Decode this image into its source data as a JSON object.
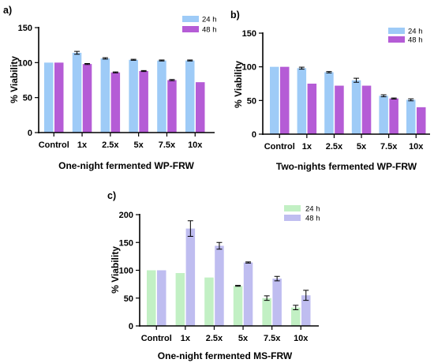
{
  "chart_data": [
    {
      "panel_label": "a)",
      "type": "bar",
      "categories": [
        "Control",
        "1x",
        "2.5x",
        "5x",
        "7.5x",
        "10x"
      ],
      "xlabel": "One-night fermented WP-FRW",
      "ylabel": "% Viability",
      "ylim": [
        0,
        150
      ],
      "yticks": [
        0,
        50,
        100,
        150
      ],
      "legend_position": "top-right",
      "series": [
        {
          "name": "24 h",
          "color": "#9ECBF7",
          "values": [
            100,
            114,
            106,
            104,
            103,
            103
          ],
          "errors": [
            0,
            2,
            1,
            0.7,
            0.7,
            0.7
          ]
        },
        {
          "name": "48 h",
          "color": "#B55CD6",
          "values": [
            100,
            98,
            86,
            88,
            75,
            72
          ],
          "errors": [
            0,
            0.7,
            0.7,
            0.7,
            0.8,
            0
          ]
        }
      ]
    },
    {
      "panel_label": "b)",
      "type": "bar",
      "categories": [
        "Control",
        "1x",
        "2.5x",
        "5x",
        "7.5x",
        "10x"
      ],
      "xlabel": "Two-nights fermented WP-FRW",
      "ylabel": "% Viability",
      "ylim": [
        0,
        150
      ],
      "yticks": [
        0,
        50,
        100,
        150
      ],
      "legend_position": "top-right",
      "series": [
        {
          "name": "24 h",
          "color": "#9ECBF7",
          "values": [
            100,
            98,
            92,
            80,
            57,
            51
          ],
          "errors": [
            0,
            1.5,
            1,
            3,
            1.5,
            1.5
          ]
        },
        {
          "name": "48 h",
          "color": "#B55CD6",
          "values": [
            100,
            75,
            72,
            72,
            53,
            40
          ],
          "errors": [
            0,
            0,
            0,
            0,
            0.8,
            0
          ]
        }
      ]
    },
    {
      "panel_label": "c)",
      "type": "bar",
      "categories": [
        "Control",
        "1x",
        "2.5x",
        "5x",
        "7.5x",
        "10x"
      ],
      "xlabel": "One-night fermented MS-FRW",
      "ylabel": "% Viability",
      "ylim": [
        0,
        200
      ],
      "yticks": [
        0,
        50,
        100,
        150,
        200
      ],
      "legend_position": "top-right",
      "series": [
        {
          "name": "24 h",
          "color": "#C2F0C4",
          "values": [
            100,
            95,
            87,
            72,
            50,
            33
          ],
          "errors": [
            0,
            0,
            0,
            0.8,
            4,
            4
          ]
        },
        {
          "name": "48 h",
          "color": "#BFBDF0",
          "values": [
            100,
            175,
            144,
            114,
            85,
            55
          ],
          "errors": [
            0,
            14,
            6,
            1,
            4,
            9
          ]
        }
      ]
    }
  ]
}
